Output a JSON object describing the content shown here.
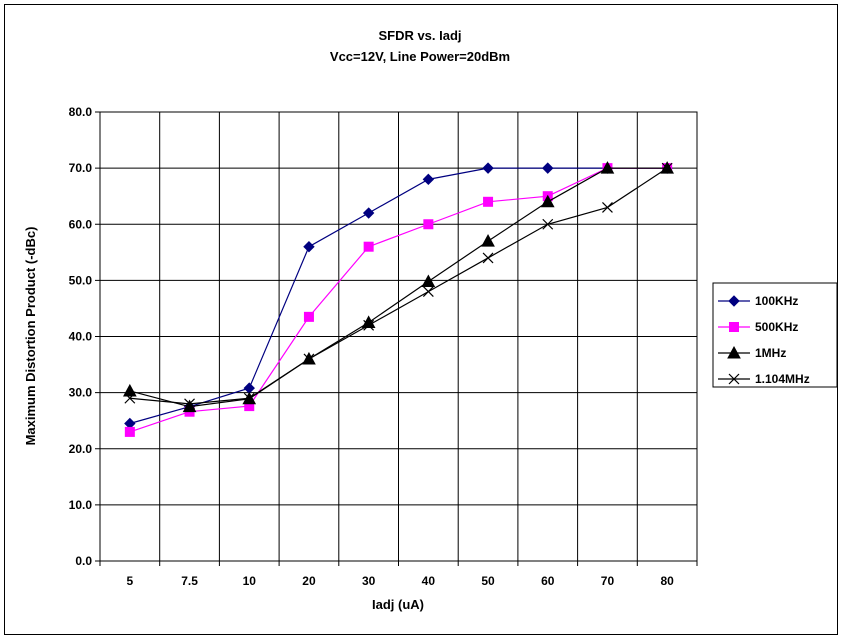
{
  "chart_data": {
    "type": "line",
    "title": "SFDR vs. Iadj",
    "subtitle": "Vcc=12V, Line Power=20dBm",
    "xlabel": "Iadj (uA)",
    "ylabel": "Maximum Distortion Product (-dBc)",
    "categories": [
      "5",
      "7.5",
      "10",
      "20",
      "30",
      "40",
      "50",
      "60",
      "70",
      "80"
    ],
    "ylim": [
      0,
      80
    ],
    "yticks": [
      "0.0",
      "10.0",
      "20.0",
      "30.0",
      "40.0",
      "50.0",
      "60.0",
      "70.0",
      "80.0"
    ],
    "grid": true,
    "legend_position": "right",
    "series": [
      {
        "name": "100KHz",
        "color": "#000080",
        "marker": "diamond",
        "values": [
          24.5,
          27.5,
          30.8,
          56.0,
          62.0,
          68.0,
          70.0,
          70.0,
          70.0,
          70.0
        ]
      },
      {
        "name": "500KHz",
        "color": "#ff00ff",
        "marker": "square",
        "values": [
          23.0,
          26.6,
          27.6,
          43.5,
          56.0,
          60.0,
          64.0,
          65.0,
          70.0,
          70.0
        ]
      },
      {
        "name": "1MHz",
        "color": "#000000",
        "marker": "triangle",
        "values": [
          30.3,
          27.5,
          28.9,
          36.0,
          42.5,
          49.8,
          57.0,
          64.0,
          70.0,
          70.0
        ]
      },
      {
        "name": "1.104MHz",
        "color": "#000000",
        "marker": "x",
        "values": [
          29.0,
          28.0,
          29.0,
          36.0,
          42.0,
          48.0,
          54.0,
          60.0,
          63.0,
          70.0
        ]
      }
    ]
  }
}
